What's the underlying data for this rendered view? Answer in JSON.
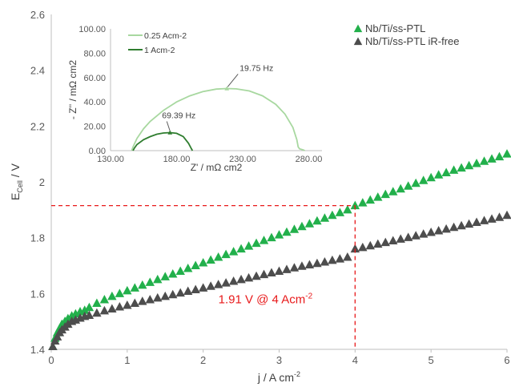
{
  "chart_data": [
    {
      "type": "scatter",
      "xlabel_main": "j / A cm",
      "xlabel_sup": "-2",
      "ylabel_main": "E",
      "ylabel_sub": "Cell",
      "ylabel_unit": " / V",
      "xlim": [
        0,
        6
      ],
      "ylim": [
        1.4,
        2.6
      ],
      "xticks": [
        "0",
        "1",
        "2",
        "3",
        "4",
        "5",
        "6"
      ],
      "yticks": [
        "1.4",
        "1.6",
        "1.8",
        "2",
        "2.2",
        "2.4",
        "2.6"
      ],
      "grid": false,
      "legend_position": "top-right",
      "series": [
        {
          "name": "Nb/Ti/ss-PTL",
          "color": "#22b04b",
          "marker": "triangle",
          "points": [
            [
              0.02,
              1.41
            ],
            [
              0.05,
              1.44
            ],
            [
              0.08,
              1.46
            ],
            [
              0.11,
              1.475
            ],
            [
              0.14,
              1.49
            ],
            [
              0.18,
              1.5
            ],
            [
              0.22,
              1.51
            ],
            [
              0.27,
              1.52
            ],
            [
              0.32,
              1.527
            ],
            [
              0.38,
              1.535
            ],
            [
              0.44,
              1.54
            ],
            [
              0.5,
              1.55
            ],
            [
              0.6,
              1.565
            ],
            [
              0.7,
              1.578
            ],
            [
              0.8,
              1.59
            ],
            [
              0.9,
              1.6
            ],
            [
              1.0,
              1.61
            ],
            [
              1.1,
              1.62
            ],
            [
              1.2,
              1.63
            ],
            [
              1.3,
              1.64
            ],
            [
              1.4,
              1.65
            ],
            [
              1.5,
              1.66
            ],
            [
              1.6,
              1.67
            ],
            [
              1.7,
              1.68
            ],
            [
              1.8,
              1.69
            ],
            [
              1.9,
              1.7
            ],
            [
              2.0,
              1.71
            ],
            [
              2.1,
              1.72
            ],
            [
              2.2,
              1.73
            ],
            [
              2.3,
              1.74
            ],
            [
              2.4,
              1.75
            ],
            [
              2.5,
              1.76
            ],
            [
              2.6,
              1.77
            ],
            [
              2.7,
              1.78
            ],
            [
              2.8,
              1.79
            ],
            [
              2.9,
              1.8
            ],
            [
              3.0,
              1.81
            ],
            [
              3.1,
              1.82
            ],
            [
              3.2,
              1.83
            ],
            [
              3.3,
              1.84
            ],
            [
              3.4,
              1.85
            ],
            [
              3.5,
              1.86
            ],
            [
              3.6,
              1.87
            ],
            [
              3.7,
              1.88
            ],
            [
              3.8,
              1.89
            ],
            [
              3.9,
              1.9
            ],
            [
              4.0,
              1.915
            ],
            [
              4.1,
              1.925
            ],
            [
              4.2,
              1.935
            ],
            [
              4.3,
              1.945
            ],
            [
              4.4,
              1.955
            ],
            [
              4.5,
              1.965
            ],
            [
              4.6,
              1.975
            ],
            [
              4.7,
              1.985
            ],
            [
              4.8,
              1.995
            ],
            [
              4.9,
              2.005
            ],
            [
              5.0,
              2.015
            ],
            [
              5.1,
              2.025
            ],
            [
              5.2,
              2.033
            ],
            [
              5.3,
              2.042
            ],
            [
              5.4,
              2.05
            ],
            [
              5.5,
              2.058
            ],
            [
              5.6,
              2.066
            ],
            [
              5.7,
              2.074
            ],
            [
              5.8,
              2.082
            ],
            [
              5.9,
              2.09
            ],
            [
              6.0,
              2.1
            ]
          ]
        },
        {
          "name": "Nb/Ti/ss-PTL iR-free",
          "color": "#4d4d4d",
          "marker": "triangle",
          "points": [
            [
              0.02,
              1.41
            ],
            [
              0.05,
              1.43
            ],
            [
              0.08,
              1.445
            ],
            [
              0.11,
              1.46
            ],
            [
              0.14,
              1.47
            ],
            [
              0.18,
              1.48
            ],
            [
              0.22,
              1.49
            ],
            [
              0.27,
              1.5
            ],
            [
              0.32,
              1.505
            ],
            [
              0.38,
              1.512
            ],
            [
              0.44,
              1.518
            ],
            [
              0.5,
              1.522
            ],
            [
              0.6,
              1.53
            ],
            [
              0.7,
              1.538
            ],
            [
              0.8,
              1.545
            ],
            [
              0.9,
              1.552
            ],
            [
              1.0,
              1.558
            ],
            [
              1.1,
              1.565
            ],
            [
              1.2,
              1.572
            ],
            [
              1.3,
              1.578
            ],
            [
              1.4,
              1.584
            ],
            [
              1.5,
              1.59
            ],
            [
              1.6,
              1.596
            ],
            [
              1.7,
              1.602
            ],
            [
              1.8,
              1.608
            ],
            [
              1.9,
              1.614
            ],
            [
              2.0,
              1.62
            ],
            [
              2.1,
              1.626
            ],
            [
              2.2,
              1.632
            ],
            [
              2.3,
              1.638
            ],
            [
              2.4,
              1.644
            ],
            [
              2.5,
              1.65
            ],
            [
              2.6,
              1.656
            ],
            [
              2.7,
              1.662
            ],
            [
              2.8,
              1.668
            ],
            [
              2.9,
              1.674
            ],
            [
              3.0,
              1.68
            ],
            [
              3.1,
              1.686
            ],
            [
              3.2,
              1.692
            ],
            [
              3.3,
              1.698
            ],
            [
              3.4,
              1.703
            ],
            [
              3.5,
              1.708
            ],
            [
              3.6,
              1.713
            ],
            [
              3.7,
              1.719
            ],
            [
              3.8,
              1.724
            ],
            [
              3.9,
              1.73
            ],
            [
              4.0,
              1.76
            ],
            [
              4.1,
              1.765
            ],
            [
              4.2,
              1.771
            ],
            [
              4.3,
              1.777
            ],
            [
              4.4,
              1.783
            ],
            [
              4.5,
              1.789
            ],
            [
              4.6,
              1.795
            ],
            [
              4.7,
              1.801
            ],
            [
              4.8,
              1.807
            ],
            [
              4.9,
              1.813
            ],
            [
              5.0,
              1.819
            ],
            [
              5.1,
              1.825
            ],
            [
              5.2,
              1.831
            ],
            [
              5.3,
              1.837
            ],
            [
              5.4,
              1.843
            ],
            [
              5.5,
              1.849
            ],
            [
              5.6,
              1.855
            ],
            [
              5.7,
              1.861
            ],
            [
              5.8,
              1.867
            ],
            [
              5.9,
              1.873
            ],
            [
              6.0,
              1.88
            ]
          ]
        }
      ],
      "reference_lines": {
        "color": "#e8191a",
        "x": 4.0,
        "y": 1.915
      },
      "annotation": {
        "text": "1.91 V @ 4 Acm",
        "sup": "-2",
        "color": "#e8191a",
        "x": 2.2,
        "y": 1.565
      }
    },
    {
      "type": "line",
      "xlabel": "Z' / mΩ cm2",
      "ylabel": "- Z'' / mΩ cm2",
      "xlim": [
        130,
        290
      ],
      "ylim": [
        0,
        100
      ],
      "xticks": [
        "130.00",
        "180.00",
        "230.00",
        "280.00"
      ],
      "yticks": [
        "0.00",
        "20.00",
        "40.00",
        "60.00",
        "80.00",
        "100.00"
      ],
      "legend_position": "top-left",
      "series": [
        {
          "name": "0.25 Acm-2",
          "color": "#a8d8a0",
          "points": [
            [
              146,
              0
            ],
            [
              147,
              3
            ],
            [
              150,
              10
            ],
            [
              155,
              18
            ],
            [
              160,
              24
            ],
            [
              170,
              33
            ],
            [
              180,
              40
            ],
            [
              190,
              45
            ],
            [
              200,
              48.5
            ],
            [
              210,
              50.5
            ],
            [
              218,
              51
            ],
            [
              225,
              50.7
            ],
            [
              235,
              49
            ],
            [
              245,
              45
            ],
            [
              255,
              38
            ],
            [
              262,
              30
            ],
            [
              268,
              19
            ],
            [
              271,
              9
            ],
            [
              272,
              3
            ],
            [
              273,
              1.5
            ],
            [
              276,
              0.5
            ],
            [
              277,
              0
            ]
          ],
          "marker_label": "19.75 Hz",
          "marker_point": [
            218,
            51
          ]
        },
        {
          "name": "1 Acm-2",
          "color": "#2f7d2f",
          "points": [
            [
              147,
              0
            ],
            [
              148,
              2
            ],
            [
              150,
              5
            ],
            [
              155,
              9
            ],
            [
              160,
              11.5
            ],
            [
              165,
              13.5
            ],
            [
              170,
              14.5
            ],
            [
              175,
              14.8
            ],
            [
              180,
              14.2
            ],
            [
              185,
              11.5
            ],
            [
              189,
              6
            ],
            [
              191,
              2
            ],
            [
              192,
              0
            ]
          ],
          "marker_label": "69.39 Hz",
          "marker_point": [
            175,
            14.8
          ]
        }
      ]
    }
  ]
}
